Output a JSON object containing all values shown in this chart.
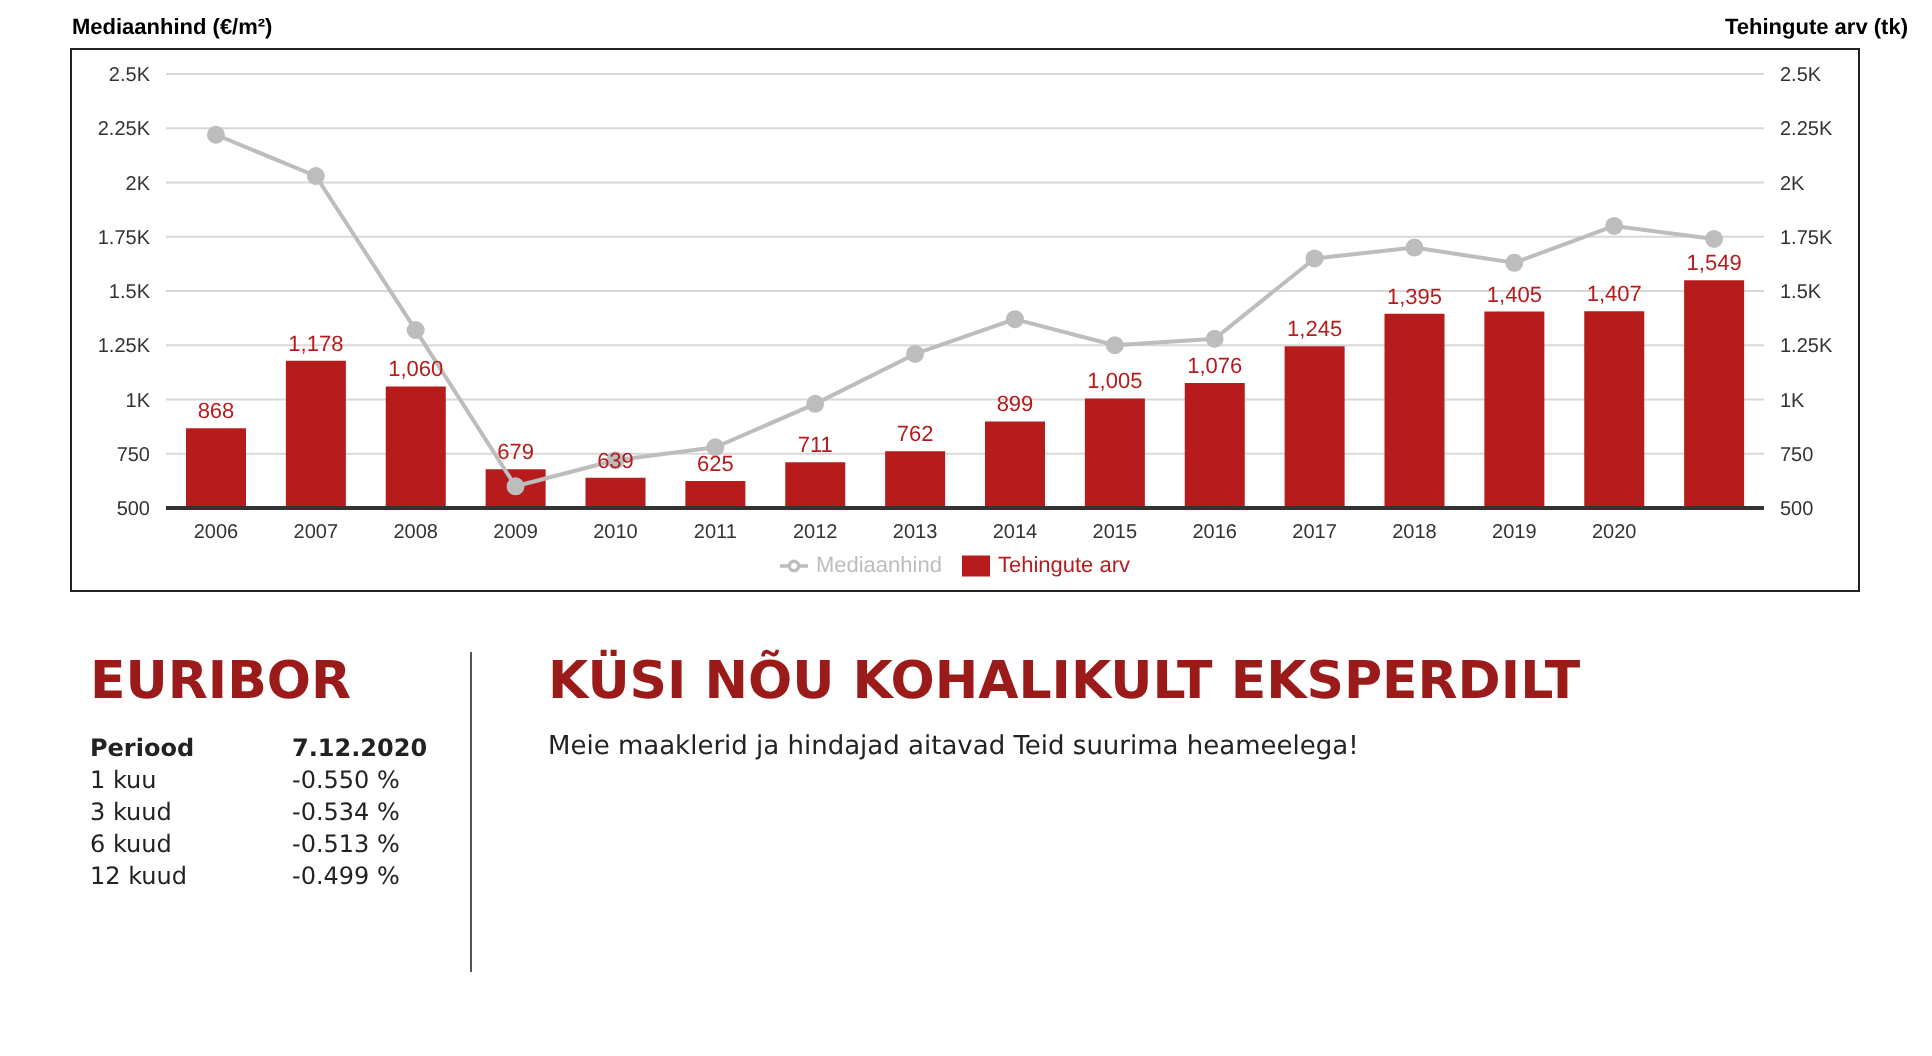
{
  "chart_data": [
    {
      "type": "bar",
      "ylabel": "Mediaanhind (€/m²)",
      "y2label": "Tehingute arv (tk)",
      "categories": [
        "2006",
        "2007",
        "2008",
        "2009",
        "2010",
        "2011",
        "2012",
        "2013",
        "2014",
        "2015",
        "2016",
        "2017",
        "2018",
        "2019",
        "2020",
        null
      ],
      "series": [
        {
          "name": "Mediaanhind",
          "type": "line",
          "color": "#bdbdbd",
          "marker": "circle",
          "values": [
            2220,
            2030,
            1320,
            600,
            720,
            780,
            980,
            1210,
            1370,
            1250,
            1280,
            1650,
            1700,
            1630,
            1800,
            1740
          ]
        },
        {
          "name": "Tehingute arv",
          "type": "bar",
          "color": "#b71c1c",
          "values": [
            868,
            1178,
            1060,
            679,
            639,
            625,
            711,
            762,
            899,
            1005,
            1076,
            1245,
            1395,
            1405,
            1407,
            1549
          ],
          "value_labels": [
            "868",
            "1,178",
            "1,060",
            "679",
            "639",
            "625",
            "711",
            "762",
            "899",
            "1,005",
            "1,076",
            "1,245",
            "1,395",
            "1,405",
            "1,407",
            "1,549"
          ]
        }
      ],
      "ylim": [
        500,
        2500
      ],
      "yticks": [
        500,
        750,
        {
          "value": 1000,
          "label": "1K"
        },
        {
          "value": 1250,
          "label": "1.25K"
        },
        {
          "value": 1500,
          "label": "1.5K"
        },
        {
          "value": 1750,
          "label": "1.75K"
        },
        {
          "value": 2000,
          "label": "2K"
        },
        {
          "value": 2250,
          "label": "2.25K"
        },
        {
          "value": 2500,
          "label": "2.5K"
        }
      ],
      "y2lim": [
        500,
        2500
      ],
      "y2ticks": [
        500,
        750,
        {
          "value": 1000,
          "label": "1K"
        },
        {
          "value": 1250,
          "label": "1.25K"
        },
        {
          "value": 1500,
          "label": "1.5K"
        },
        {
          "value": 1750,
          "label": "1.75K"
        },
        {
          "value": 2000,
          "label": "2K"
        },
        {
          "value": 2250,
          "label": "2.25K"
        },
        {
          "value": 2500,
          "label": "2.5K"
        }
      ],
      "grid": "y",
      "legend": "bottom"
    },
    {
      "type": "other",
      "title": "EURIBOR",
      "annotations": [
        "Periood",
        "7.12.2020",
        "1 kuu",
        "-0.550 %",
        "3 kuud",
        "-0.534 %",
        "6 kuud",
        "-0.513 %",
        "12 kuud",
        "-0.499 %"
      ]
    },
    {
      "type": "other",
      "title": "KÜSI NÕU KOHALIKULT EKSPERDILT",
      "subtitle": "Meie maaklerid ja hindajad aitavad Teid suurima heameelega!"
    }
  ]
}
